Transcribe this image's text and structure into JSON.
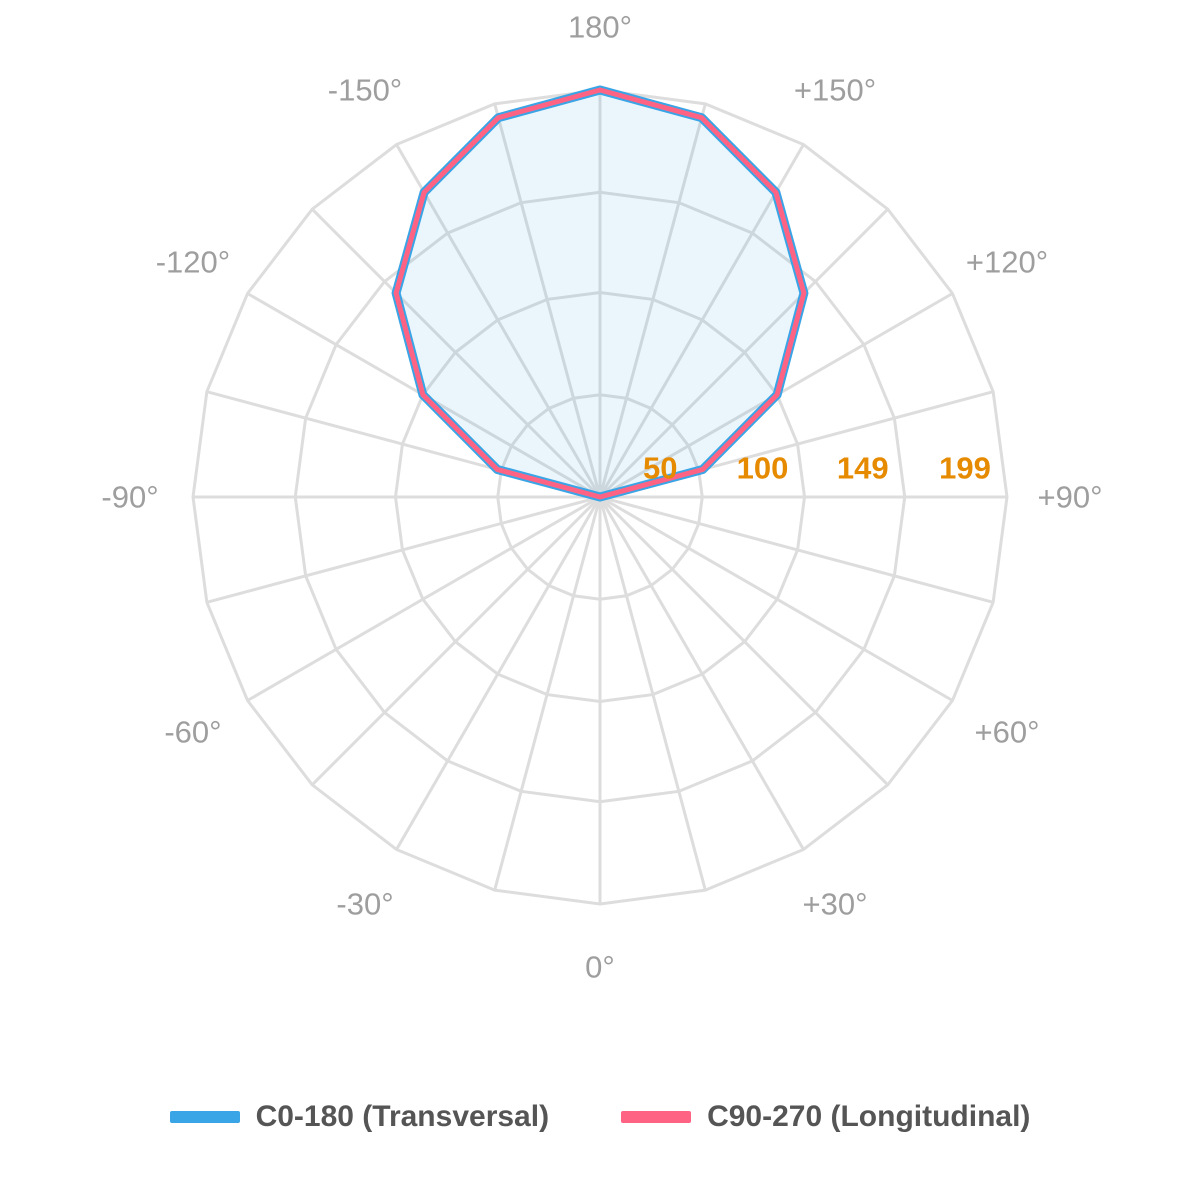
{
  "chart_data": {
    "type": "polar-line",
    "description_units": "candela",
    "angular_axis": {
      "labels": [
        "0°",
        "+30°",
        "+60°",
        "+90°",
        "+120°",
        "+150°",
        "180°",
        "-150°",
        "-120°",
        "-90°",
        "-60°",
        "-30°"
      ],
      "angles_deg": [
        0,
        30,
        60,
        90,
        120,
        150,
        180,
        -150,
        -120,
        -90,
        -60,
        -30
      ],
      "spoke_step_deg": 15
    },
    "radial_axis": {
      "tick_labels": [
        "50",
        "100",
        "149",
        "199"
      ],
      "tick_values": [
        50,
        100,
        149,
        199
      ],
      "range": [
        0,
        199
      ]
    },
    "series": [
      {
        "name": "C0-180 (Transversal)",
        "color": "#3aa5e6",
        "angles_deg": [
          -180,
          -165,
          -150,
          -135,
          -120,
          -105,
          -90,
          90,
          105,
          120,
          135,
          150,
          165,
          180
        ],
        "values": [
          199,
          192,
          172,
          141,
          100,
          52,
          0,
          0,
          52,
          100,
          141,
          172,
          192,
          199
        ]
      },
      {
        "name": "C90-270 (Longitudinal)",
        "color": "#ff6384",
        "angles_deg": [
          -180,
          -165,
          -150,
          -135,
          -120,
          -105,
          -90,
          90,
          105,
          120,
          135,
          150,
          165,
          180
        ],
        "values": [
          199,
          192,
          172,
          141,
          100,
          52,
          0,
          0,
          52,
          100,
          141,
          172,
          192,
          199
        ]
      }
    ]
  }
}
